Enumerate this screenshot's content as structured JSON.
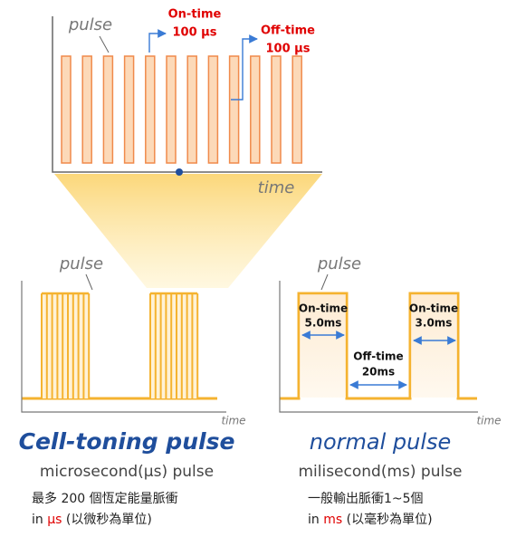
{
  "top": {
    "pulse_label": "pulse",
    "on_time": {
      "label": "On-time",
      "value": "100 μs"
    },
    "off_time": {
      "label": "Off-time",
      "value": "100 μs"
    },
    "axis_label": "time"
  },
  "left": {
    "pulse_label": "pulse",
    "axis_label": "time",
    "title": "Cell-toning pulse",
    "subtitle": "microsecond(μs) pulse",
    "description": "最多 200 個恆定能量脈衝",
    "unit_note": [
      "in ",
      "μs",
      " (以微秒為單位)"
    ]
  },
  "right": {
    "pulse_label": "pulse",
    "axis_label": "time",
    "annotations": [
      {
        "label": "On-time",
        "value": "5.0ms"
      },
      {
        "label": "Off-time",
        "value": "20ms"
      },
      {
        "label": "On-time",
        "value": "3.0ms"
      }
    ],
    "title": "normal pulse",
    "subtitle": "milisecond(ms) pulse",
    "description": "一般輸出脈衝1~5個",
    "unit_note": [
      "in ",
      "ms",
      " (以毫秒為單位)"
    ]
  }
}
